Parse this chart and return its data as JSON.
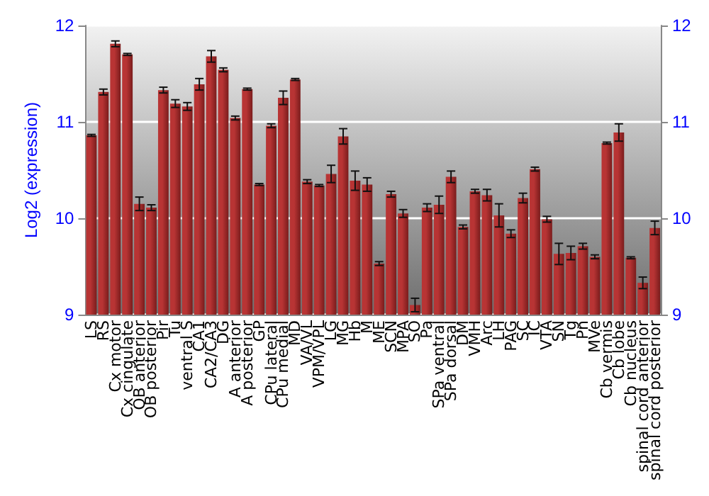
{
  "chart_data": {
    "type": "bar",
    "ylabel": "Log2 (expression)",
    "categories": [
      "LS",
      "RS",
      "Cx motor",
      "Cx cingulate",
      "OB anterior",
      "OB posterior",
      "Pir",
      "Tu",
      "ventral S",
      "CA1",
      "CA2/CA3",
      "DG",
      "A anterior",
      "A posterior",
      "GP",
      "CPu lateral",
      "CPu medial",
      "MD",
      "VA/VL",
      "VPM/VPL",
      "LG",
      "MG",
      "Hb",
      "M",
      "ME",
      "SCN",
      "MPA",
      "SO",
      "Pa",
      "SPa ventral",
      "SPa dorsal",
      "DM",
      "VMH",
      "Arc",
      "LH",
      "PAG",
      "SC",
      "IC",
      "VTA",
      "SN",
      "Tg",
      "Pn",
      "MVe",
      "Cb vermis",
      "Cb lobe",
      "Cb nucleus",
      "spinal cord anterior",
      "spinal cord posterior"
    ],
    "series": [
      {
        "color": "#b83434",
        "values": [
          10.86,
          11.31,
          11.81,
          11.7,
          10.15,
          10.11,
          11.33,
          11.19,
          11.16,
          11.39,
          11.68,
          11.54,
          11.04,
          11.34,
          10.35,
          10.96,
          11.25,
          11.44,
          10.38,
          10.34,
          10.46,
          10.85,
          10.39,
          10.35,
          9.53,
          10.25,
          10.05,
          9.1,
          10.11,
          10.14,
          10.43,
          9.91,
          10.28,
          10.24,
          10.03,
          9.84,
          10.21,
          10.51,
          9.99,
          9.63,
          9.64,
          9.71,
          9.6,
          10.78,
          10.89,
          9.59,
          9.33,
          9.9
        ],
        "errors": [
          0.01,
          0.03,
          0.03,
          0.01,
          0.07,
          0.03,
          0.03,
          0.04,
          0.04,
          0.06,
          0.06,
          0.02,
          0.02,
          0.01,
          0.01,
          0.02,
          0.07,
          0.01,
          0.02,
          0.01,
          0.09,
          0.08,
          0.1,
          0.07,
          0.02,
          0.03,
          0.04,
          0.07,
          0.04,
          0.09,
          0.06,
          0.02,
          0.02,
          0.06,
          0.12,
          0.04,
          0.05,
          0.02,
          0.03,
          0.11,
          0.07,
          0.03,
          0.02,
          0.01,
          0.09,
          0.01,
          0.06,
          0.07
        ]
      }
    ],
    "ylim": [
      9,
      12
    ],
    "yticks": [
      9,
      10,
      11,
      12
    ],
    "y2lim": [
      9,
      12
    ],
    "y2ticks": [
      9,
      10,
      11,
      12
    ],
    "grid": "y",
    "legend": false
  }
}
